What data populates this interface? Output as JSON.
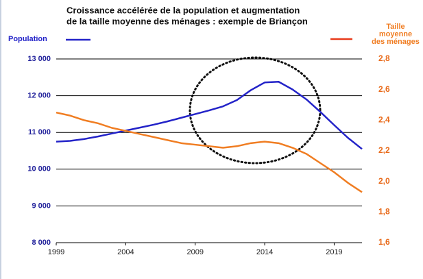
{
  "chart_data": {
    "type": "line",
    "title": [
      "Croissance accélérée de la population et augmentation",
      "de la taille moyenne des ménages : exemple de Briançon"
    ],
    "x": [
      1999,
      2000,
      2001,
      2002,
      2003,
      2004,
      2005,
      2006,
      2007,
      2008,
      2009,
      2010,
      2011,
      2012,
      2013,
      2014,
      2015,
      2016,
      2017,
      2018,
      2019,
      2020,
      2021
    ],
    "series": [
      {
        "name": [
          "Population"
        ],
        "color": "#2323c8",
        "values": [
          10750,
          10770,
          10820,
          10890,
          10970,
          11050,
          11130,
          11210,
          11300,
          11400,
          11500,
          11600,
          11710,
          11880,
          12150,
          12360,
          12380,
          12170,
          11900,
          11560,
          11200,
          10850,
          10550
        ]
      },
      {
        "name": [
          "Taille",
          "moyenne",
          "des ménages"
        ],
        "color": "#f07d22",
        "legend_line_color": "#e83a1a",
        "axis": "y2",
        "values": [
          2.45,
          2.43,
          2.4,
          2.38,
          2.35,
          2.33,
          2.31,
          2.29,
          2.27,
          2.25,
          2.24,
          2.23,
          2.22,
          2.23,
          2.25,
          2.26,
          2.25,
          2.22,
          2.18,
          2.12,
          2.06,
          1.99,
          1.93
        ]
      }
    ],
    "xlim": [
      1999,
      2021
    ],
    "xticks": [
      1999,
      2004,
      2009,
      2014,
      2019
    ],
    "ylim": [
      8000,
      13000
    ],
    "yticks": [
      {
        "value": 8000,
        "label": "8 000"
      },
      {
        "value": 9000,
        "label": "9 000"
      },
      {
        "value": 10000,
        "label": "10 000"
      },
      {
        "value": 11000,
        "label": "11 000"
      },
      {
        "value": 12000,
        "label": "12 000"
      },
      {
        "value": 13000,
        "label": "13 000"
      }
    ],
    "y2lim": [
      1.6,
      2.8
    ],
    "y2ticks": [
      {
        "value": 1.6,
        "label": "1,6"
      },
      {
        "value": 1.8,
        "label": "1,8"
      },
      {
        "value": 2.0,
        "label": "2,0"
      },
      {
        "value": 2.2,
        "label": "2,2"
      },
      {
        "value": 2.4,
        "label": "2,4"
      },
      {
        "value": 2.6,
        "label": "2,6"
      },
      {
        "value": 2.8,
        "label": "2,8"
      }
    ],
    "grid": true
  }
}
